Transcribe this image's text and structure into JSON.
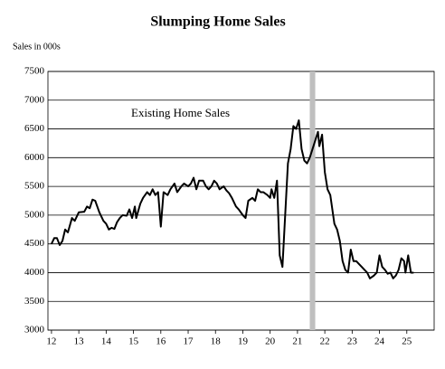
{
  "chart_data": {
    "type": "line",
    "title": "Slumping  Home Sales",
    "y_label": "Sales in 000s",
    "x": [
      12.0,
      12.1,
      12.2,
      12.3,
      12.4,
      12.5,
      12.6,
      12.75,
      12.85,
      13.0,
      13.2,
      13.3,
      13.4,
      13.5,
      13.6,
      13.75,
      13.9,
      14.0,
      14.1,
      14.2,
      14.3,
      14.4,
      14.5,
      14.6,
      14.75,
      14.85,
      14.95,
      15.05,
      15.1,
      15.25,
      15.35,
      15.5,
      15.6,
      15.7,
      15.8,
      15.9,
      16.0,
      16.1,
      16.25,
      16.35,
      16.5,
      16.6,
      16.75,
      16.85,
      17.0,
      17.1,
      17.2,
      17.3,
      17.4,
      17.55,
      17.65,
      17.75,
      17.85,
      17.95,
      18.05,
      18.15,
      18.3,
      18.4,
      18.5,
      18.6,
      18.75,
      18.85,
      19.0,
      19.1,
      19.2,
      19.35,
      19.45,
      19.55,
      19.65,
      19.75,
      19.9,
      20.0,
      20.05,
      20.15,
      20.25,
      20.35,
      20.45,
      20.55,
      20.65,
      20.75,
      20.85,
      20.95,
      21.05,
      21.15,
      21.25,
      21.35,
      21.45,
      21.55,
      21.65,
      21.75,
      21.8,
      21.9,
      22.0,
      22.1,
      22.2,
      22.35,
      22.45,
      22.55,
      22.65,
      22.75,
      22.85,
      22.95,
      23.05,
      23.15,
      23.25,
      23.35,
      23.45,
      23.55,
      23.65,
      23.8,
      23.9,
      24.0,
      24.1,
      24.2,
      24.3,
      24.4,
      24.5,
      24.6,
      24.7,
      24.8,
      24.9,
      24.95,
      25.05,
      25.15,
      25.25
    ],
    "series": [
      {
        "name": "Existing Home Sales",
        "color": "#000000",
        "values": [
          4500,
          4600,
          4600,
          4480,
          4550,
          4750,
          4700,
          4950,
          4900,
          5050,
          5060,
          5150,
          5120,
          5270,
          5250,
          5050,
          4900,
          4850,
          4750,
          4780,
          4760,
          4880,
          4950,
          5000,
          4990,
          5100,
          4950,
          5150,
          4950,
          5200,
          5300,
          5400,
          5350,
          5450,
          5350,
          5400,
          4800,
          5400,
          5350,
          5450,
          5550,
          5400,
          5500,
          5550,
          5500,
          5550,
          5650,
          5450,
          5600,
          5600,
          5500,
          5450,
          5500,
          5600,
          5550,
          5450,
          5500,
          5430,
          5380,
          5300,
          5150,
          5100,
          5000,
          4950,
          5250,
          5300,
          5250,
          5450,
          5400,
          5400,
          5350,
          5300,
          5450,
          5300,
          5600,
          4300,
          4100,
          5000,
          5900,
          6150,
          6550,
          6500,
          6650,
          6150,
          5950,
          5900,
          6000,
          6150,
          6300,
          6450,
          6200,
          6400,
          5750,
          5450,
          5350,
          4850,
          4750,
          4550,
          4200,
          4050,
          4000,
          4400,
          4200,
          4200,
          4150,
          4100,
          4050,
          4000,
          3900,
          3950,
          4000,
          4300,
          4100,
          4050,
          3980,
          4000,
          3900,
          3950,
          4050,
          4250,
          4200,
          4000,
          4300,
          4000,
          4000
        ]
      }
    ],
    "shaded_x_range": [
      21.45,
      21.65
    ],
    "shade_color": "#bfbfbf",
    "xlim": [
      11.87,
      26.0
    ],
    "xticks": [
      12,
      13,
      14,
      15,
      16,
      17,
      18,
      19,
      20,
      21,
      22,
      23,
      24,
      25
    ],
    "ylim": [
      3000,
      7500
    ],
    "yticks": [
      3000,
      3500,
      4000,
      4500,
      5000,
      5500,
      6000,
      6500,
      7000,
      7500
    ],
    "grid": true
  }
}
